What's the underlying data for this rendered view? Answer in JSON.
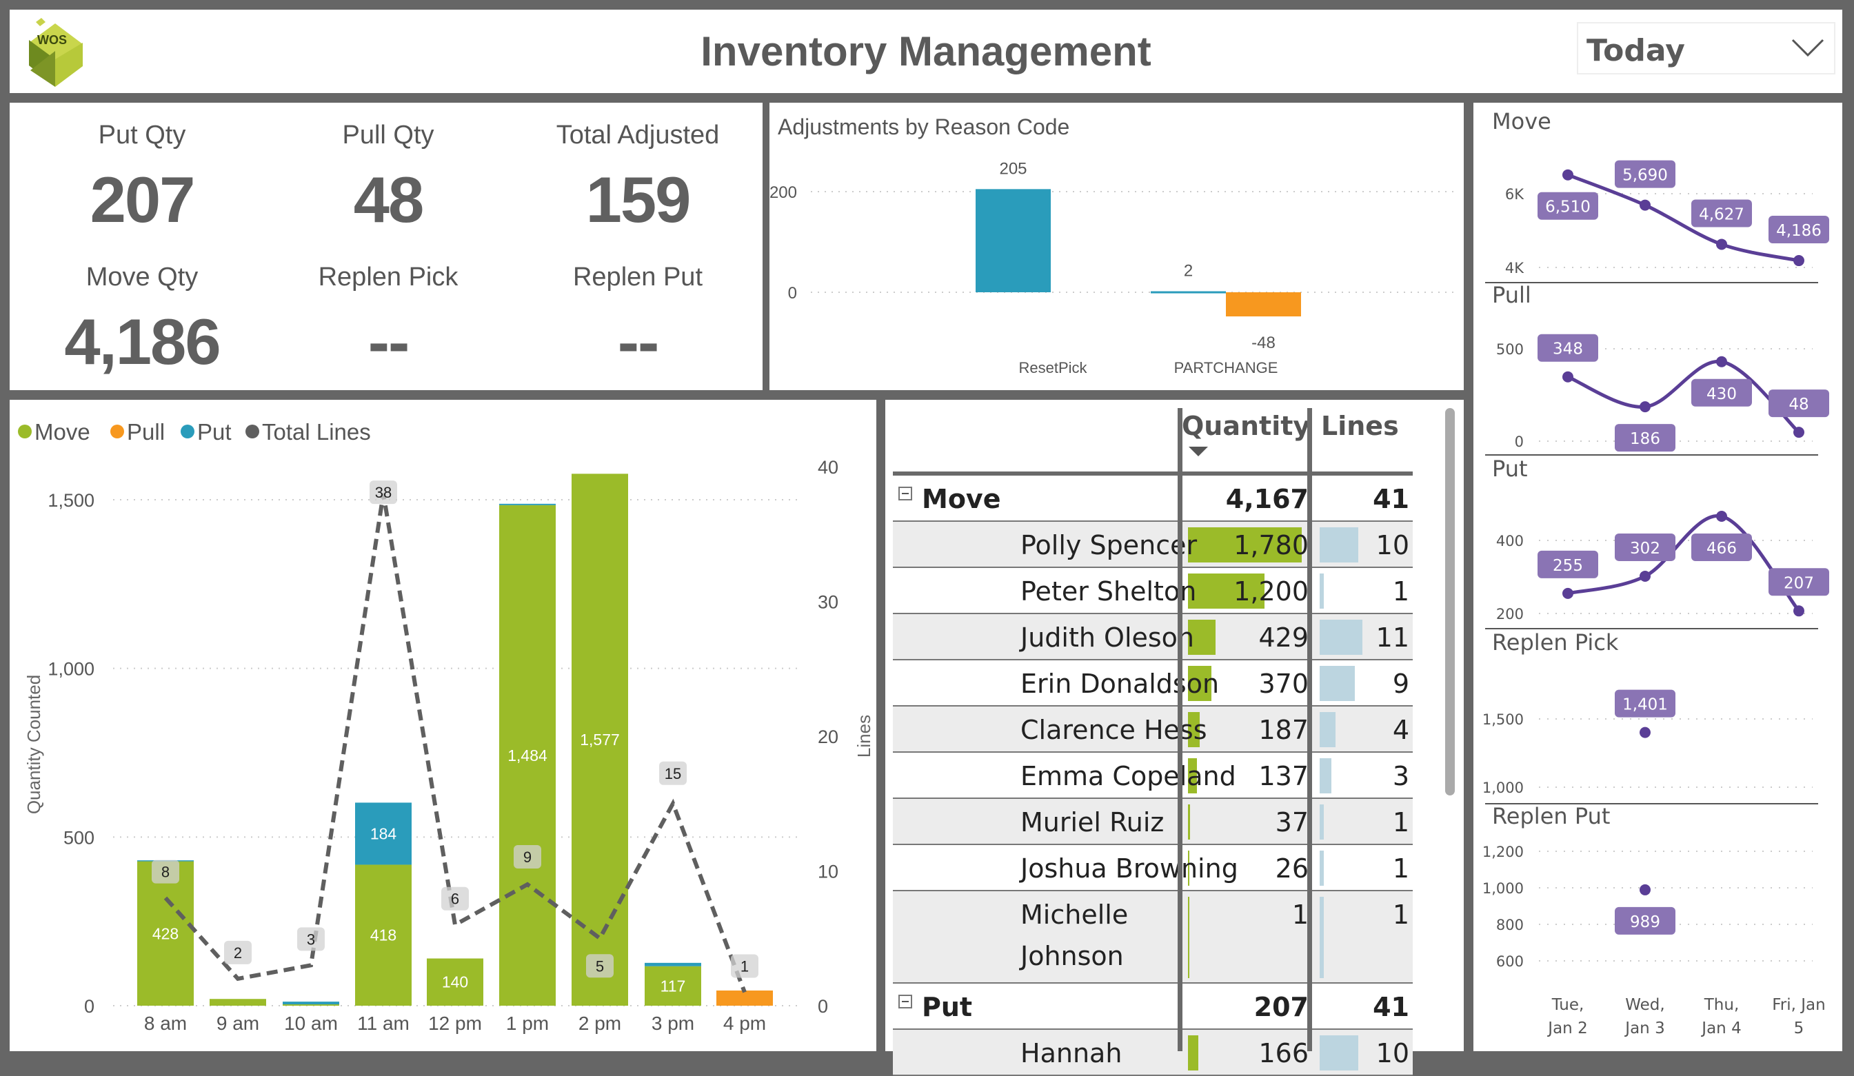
{
  "header": {
    "logo_text": "WOS",
    "title": "Inventory Management",
    "date_filter": {
      "value": "Today",
      "icon": "chevron-down-icon"
    }
  },
  "kpis": [
    {
      "label": "Put Qty",
      "value": "207"
    },
    {
      "label": "Pull Qty",
      "value": "48"
    },
    {
      "label": "Total Adjusted",
      "value": "159"
    },
    {
      "label": "Move Qty",
      "value": "4,186"
    },
    {
      "label": "Replen Pick",
      "value": "--"
    },
    {
      "label": "Replen Put",
      "value": "--"
    }
  ],
  "colors": {
    "move": "#9BBB29",
    "pull": "#F7981F",
    "put": "#2A9CBB",
    "lines": "#5F5F5F",
    "trend": "#5A3E96",
    "trend_label": "#8A74B4",
    "lines_bar": "#BCD5E0"
  },
  "chart_data": [
    {
      "id": "adjustments",
      "type": "bar",
      "title": "Adjustments by Reason Code",
      "categories": [
        "ResetPick",
        "PARTCHANGE"
      ],
      "series": [
        {
          "values": [
            205,
            2
          ],
          "color": "#2A9CBB"
        },
        {
          "values": [
            null,
            -48
          ],
          "color": "#F7981F"
        }
      ],
      "data_labels": [
        [
          "205",
          "2"
        ],
        [
          null,
          "-48"
        ]
      ],
      "y_ticks": [
        0,
        200
      ],
      "grid": true
    },
    {
      "id": "hourly",
      "type": "bar+line",
      "categories": [
        "8 am",
        "9 am",
        "10 am",
        "11 am",
        "12 pm",
        "1 pm",
        "2 pm",
        "3 pm",
        "4 pm"
      ],
      "series": [
        {
          "name": "Move",
          "type": "stacked-bar",
          "values": [
            428,
            20,
            4,
            418,
            140,
            1484,
            1577,
            117,
            0
          ],
          "data_labels": [
            "428",
            null,
            null,
            "418",
            "140",
            "1,484",
            "1,577",
            "117",
            null
          ]
        },
        {
          "name": "Pull",
          "type": "stacked-bar",
          "values": [
            0,
            0,
            0,
            0,
            0,
            0,
            0,
            0,
            45
          ],
          "data_labels": [
            null,
            null,
            null,
            null,
            null,
            null,
            null,
            null,
            null
          ]
        },
        {
          "name": "Put",
          "type": "stacked-bar",
          "values": [
            3,
            0,
            8,
            184,
            0,
            4,
            0,
            10,
            0
          ],
          "data_labels": [
            null,
            null,
            null,
            "184",
            null,
            null,
            null,
            null,
            null
          ]
        },
        {
          "name": "Total Lines",
          "type": "line",
          "axis": "right",
          "style": "dashed",
          "values": [
            8,
            2,
            3,
            38,
            6,
            9,
            5,
            15,
            1
          ]
        }
      ],
      "ylabel": "Quantity Counted",
      "y2label": "Lines",
      "y_ticks": [
        0,
        500,
        1000,
        1500
      ],
      "y_tick_labels": [
        "0",
        "500",
        "1,000",
        "1,500"
      ],
      "y2_ticks": [
        0,
        10,
        20,
        30,
        40
      ],
      "legend": "top-left",
      "grid": true
    },
    {
      "id": "daily-trends",
      "type": "line",
      "x": [
        "Tue, Jan 2",
        "Wed, Jan 3",
        "Thu, Jan 4",
        "Fri, Jan 5"
      ],
      "x_lines": [
        [
          "Tue,",
          "Jan 2"
        ],
        [
          "Wed,",
          "Jan 3"
        ],
        [
          "Thu,",
          "Jan 4"
        ],
        [
          "Fri, Jan",
          "5"
        ]
      ],
      "panels": [
        {
          "title": "Move",
          "values": [
            6510,
            5690,
            4627,
            4186
          ],
          "labels": [
            "6,510",
            "5,690",
            "4,627",
            "4,186"
          ],
          "ticks": [
            6000,
            4000
          ],
          "tick_labels": [
            "6K",
            "4K"
          ]
        },
        {
          "title": "Pull",
          "values": [
            348,
            186,
            430,
            48
          ],
          "labels": [
            "348",
            "186",
            "430",
            "48"
          ],
          "ticks": [
            500,
            0
          ],
          "tick_labels": [
            "500",
            "0"
          ]
        },
        {
          "title": "Put",
          "values": [
            255,
            302,
            466,
            207
          ],
          "labels": [
            "255",
            "302",
            "466",
            "207"
          ],
          "ticks": [
            400,
            200
          ],
          "tick_labels": [
            "400",
            "200"
          ]
        },
        {
          "title": "Replen Pick",
          "values": [
            null,
            1401,
            null,
            null
          ],
          "labels": [
            null,
            "1,401",
            null,
            null
          ],
          "ticks": [
            1500,
            1000
          ],
          "tick_labels": [
            "1,500",
            "1,000"
          ]
        },
        {
          "title": "Replen Put",
          "values": [
            null,
            989,
            null,
            null
          ],
          "labels": [
            null,
            "989",
            null,
            null
          ],
          "ticks": [
            1200,
            1000,
            800,
            600
          ],
          "tick_labels": [
            "1,200",
            "1,000",
            "800",
            "600"
          ]
        }
      ]
    }
  ],
  "matrix": {
    "columns": [
      "Quantity",
      "Lines"
    ],
    "sort_icon": "sort-descending-icon",
    "max_quantity": 1780,
    "max_lines": 11,
    "groups": [
      {
        "name": "Move",
        "quantity": "4,167",
        "lines": "41",
        "expanded": true,
        "rows": [
          {
            "name": "Polly Spencer",
            "quantity": "1,780",
            "q": 1780,
            "lines": "10",
            "l": 10
          },
          {
            "name": "Peter Shelton",
            "quantity": "1,200",
            "q": 1200,
            "lines": "1",
            "l": 1
          },
          {
            "name": "Judith Oleson",
            "quantity": "429",
            "q": 429,
            "lines": "11",
            "l": 11
          },
          {
            "name": "Erin Donaldson",
            "quantity": "370",
            "q": 370,
            "lines": "9",
            "l": 9
          },
          {
            "name": "Clarence Hess",
            "quantity": "187",
            "q": 187,
            "lines": "4",
            "l": 4
          },
          {
            "name": "Emma Copeland",
            "quantity": "137",
            "q": 137,
            "lines": "3",
            "l": 3
          },
          {
            "name": "Muriel Ruiz",
            "quantity": "37",
            "q": 37,
            "lines": "1",
            "l": 1
          },
          {
            "name": "Joshua Browning",
            "quantity": "26",
            "q": 26,
            "lines": "1",
            "l": 1
          },
          {
            "name": "Michelle Johnson",
            "quantity": "1",
            "q": 1,
            "lines": "1",
            "l": 1
          }
        ]
      },
      {
        "name": "Put",
        "quantity": "207",
        "lines": "41",
        "expanded": true,
        "rows": [
          {
            "name": "Hannah",
            "quantity": "166",
            "q": 166,
            "lines": "10",
            "l": 10
          }
        ]
      }
    ]
  }
}
